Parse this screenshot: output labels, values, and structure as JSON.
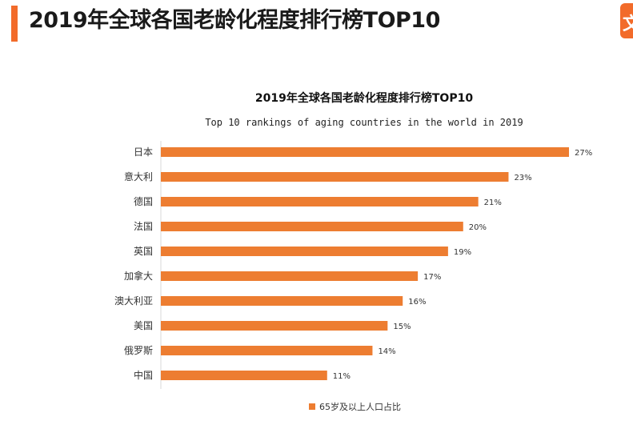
{
  "header": {
    "title": "2019年全球各国老龄化程度排行榜TOP10",
    "logo_glyph": "文",
    "accent_color": "#f26b2a"
  },
  "chart_data": {
    "type": "bar",
    "orientation": "horizontal",
    "title": "2019年全球各国老龄化程度排行榜TOP10",
    "subtitle": "Top 10 rankings of aging countries in the world in 2019",
    "categories": [
      "日本",
      "意大利",
      "德国",
      "法国",
      "英国",
      "加拿大",
      "澳大利亚",
      "美国",
      "俄罗斯",
      "中国"
    ],
    "values": [
      27,
      23,
      21,
      20,
      19,
      17,
      16,
      15,
      14,
      11
    ],
    "value_labels": [
      "27%",
      "23%",
      "21%",
      "20%",
      "19%",
      "17%",
      "16%",
      "15%",
      "14%",
      "11%"
    ],
    "value_unit": "%",
    "series_name": "65岁及以上人口占比",
    "bar_color": "#ed7d31",
    "xlim": [
      0,
      27
    ],
    "legend_position": "bottom",
    "grid": false
  }
}
